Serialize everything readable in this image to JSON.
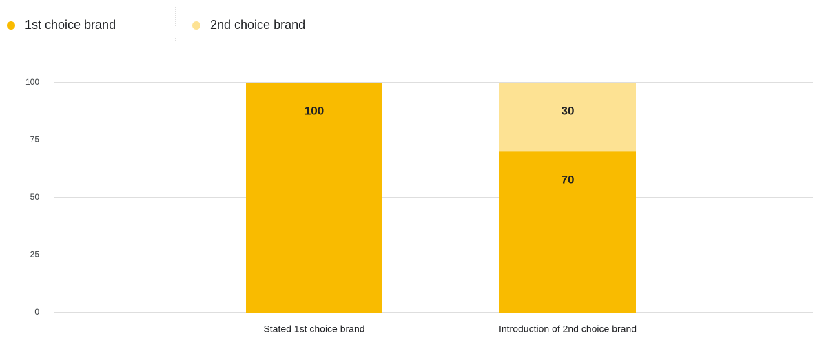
{
  "chart_data": {
    "type": "stacked_bar",
    "categories": [
      "Stated 1st choice brand",
      "Introduction of 2nd choice brand"
    ],
    "series": [
      {
        "name": "1st choice brand",
        "color": "#f9bb00",
        "values": [
          100,
          70
        ]
      },
      {
        "name": "2nd choice brand",
        "color": "#fde293",
        "values": [
          null,
          30
        ]
      }
    ],
    "ylim": [
      0,
      100
    ],
    "yticks": [
      0,
      25,
      50,
      75,
      100
    ],
    "grid": true,
    "legend": "top-left"
  }
}
